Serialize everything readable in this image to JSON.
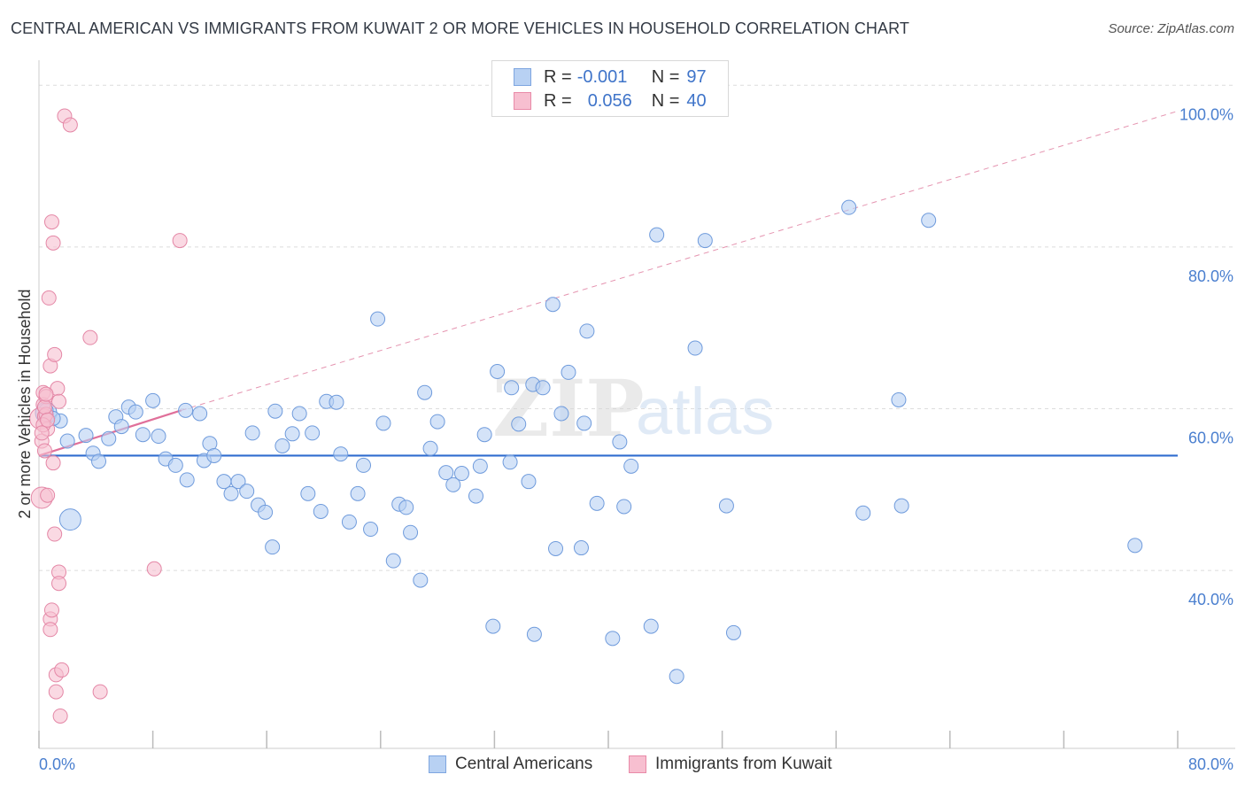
{
  "title": "CENTRAL AMERICAN VS IMMIGRANTS FROM KUWAIT 2 OR MORE VEHICLES IN HOUSEHOLD CORRELATION CHART",
  "source": "Source: ZipAtlas.com",
  "watermark": {
    "zip": "ZIP",
    "atlas": "atlas"
  },
  "legend": {
    "rows": [
      {
        "r_label": "R =",
        "r_value": "-0.001",
        "n_label": "N =",
        "n_value": "97",
        "fill": "#b8d1f3",
        "stroke": "#7ea6e0"
      },
      {
        "r_label": "R =",
        "r_value": "0.056",
        "n_label": "N =",
        "n_value": "40",
        "fill": "#f7bfd0",
        "stroke": "#e98aa8"
      }
    ]
  },
  "bottom_legend": {
    "items": [
      {
        "label": "Central Americans",
        "fill": "#b8d1f3",
        "stroke": "#7ea6e0"
      },
      {
        "label": "Immigrants from Kuwait",
        "fill": "#f7bfd0",
        "stroke": "#e98aa8"
      }
    ]
  },
  "chart_data": {
    "type": "scatter",
    "title": "CENTRAL AMERICAN VS IMMIGRANTS FROM KUWAIT 2 OR MORE VEHICLES IN HOUSEHOLD CORRELATION CHART",
    "xlabel": "",
    "ylabel": "2 or more Vehicles in Household",
    "xlim": [
      0,
      80
    ],
    "ylim": [
      18,
      102
    ],
    "x_tick_labels": [
      "0.0%",
      "80.0%"
    ],
    "y_tick_values": [
      40,
      60,
      80,
      100
    ],
    "y_tick_labels": [
      "40.0%",
      "60.0%",
      "80.0%",
      "100.0%"
    ],
    "grid": true,
    "colors": {
      "blue": "#5b8fd6",
      "pink": "#e67fa2",
      "tick_text": "#4a7fcf"
    },
    "series": [
      {
        "name": "Central Americans",
        "points": [
          [
            0.5,
            59.5
          ],
          [
            1.5,
            58.5
          ],
          [
            2.0,
            56.0
          ],
          [
            2.2,
            46.3
          ],
          [
            3.3,
            56.7
          ],
          [
            3.8,
            54.5
          ],
          [
            4.2,
            53.5
          ],
          [
            4.9,
            56.3
          ],
          [
            5.4,
            59.0
          ],
          [
            5.8,
            57.8
          ],
          [
            6.3,
            60.2
          ],
          [
            6.8,
            59.6
          ],
          [
            7.3,
            56.8
          ],
          [
            8.0,
            61.0
          ],
          [
            8.4,
            56.6
          ],
          [
            8.9,
            53.8
          ],
          [
            9.6,
            53.0
          ],
          [
            10.3,
            59.8
          ],
          [
            10.4,
            51.2
          ],
          [
            11.3,
            59.4
          ],
          [
            11.6,
            53.6
          ],
          [
            12.0,
            55.7
          ],
          [
            12.3,
            54.2
          ],
          [
            13.0,
            51.0
          ],
          [
            13.5,
            49.5
          ],
          [
            14.0,
            51.0
          ],
          [
            14.6,
            49.8
          ],
          [
            15.0,
            57.0
          ],
          [
            15.4,
            48.1
          ],
          [
            15.9,
            47.2
          ],
          [
            16.4,
            42.9
          ],
          [
            16.6,
            59.7
          ],
          [
            17.1,
            55.4
          ],
          [
            17.8,
            56.9
          ],
          [
            18.3,
            59.4
          ],
          [
            18.9,
            49.5
          ],
          [
            19.2,
            57.0
          ],
          [
            19.8,
            47.3
          ],
          [
            20.2,
            60.9
          ],
          [
            20.9,
            60.8
          ],
          [
            21.2,
            54.4
          ],
          [
            21.8,
            46.0
          ],
          [
            22.4,
            49.5
          ],
          [
            22.8,
            53.0
          ],
          [
            23.3,
            45.1
          ],
          [
            23.8,
            71.1
          ],
          [
            24.2,
            58.2
          ],
          [
            24.9,
            41.2
          ],
          [
            25.3,
            48.2
          ],
          [
            25.8,
            47.8
          ],
          [
            26.1,
            44.7
          ],
          [
            26.8,
            38.8
          ],
          [
            27.1,
            62.0
          ],
          [
            27.5,
            55.1
          ],
          [
            28.0,
            58.4
          ],
          [
            28.6,
            52.1
          ],
          [
            29.1,
            50.6
          ],
          [
            29.7,
            52.0
          ],
          [
            30.7,
            49.2
          ],
          [
            31.0,
            52.9
          ],
          [
            31.3,
            56.8
          ],
          [
            31.9,
            33.1
          ],
          [
            32.2,
            64.6
          ],
          [
            33.1,
            53.4
          ],
          [
            33.2,
            62.6
          ],
          [
            33.7,
            58.1
          ],
          [
            34.4,
            51.0
          ],
          [
            34.7,
            63.0
          ],
          [
            34.8,
            32.1
          ],
          [
            35.4,
            62.6
          ],
          [
            36.1,
            72.9
          ],
          [
            36.3,
            42.7
          ],
          [
            36.7,
            59.4
          ],
          [
            37.2,
            64.5
          ],
          [
            38.1,
            42.8
          ],
          [
            38.3,
            58.2
          ],
          [
            38.5,
            69.6
          ],
          [
            39.2,
            48.3
          ],
          [
            40.3,
            31.6
          ],
          [
            40.8,
            55.9
          ],
          [
            41.1,
            47.9
          ],
          [
            41.6,
            52.9
          ],
          [
            43.0,
            33.1
          ],
          [
            43.4,
            81.5
          ],
          [
            44.8,
            26.9
          ],
          [
            46.1,
            67.5
          ],
          [
            46.8,
            80.8
          ],
          [
            48.3,
            48.0
          ],
          [
            48.8,
            32.3
          ],
          [
            56.9,
            84.9
          ],
          [
            57.9,
            47.1
          ],
          [
            60.4,
            61.1
          ],
          [
            60.6,
            48.0
          ],
          [
            62.5,
            83.3
          ],
          [
            77.0,
            43.1
          ],
          [
            1.0,
            58.8
          ],
          [
            0.5,
            59.8
          ]
        ]
      },
      {
        "name": "Immigrants from Kuwait",
        "points": [
          [
            0.1,
            58.8
          ],
          [
            0.2,
            56.0
          ],
          [
            0.2,
            49.0
          ],
          [
            0.3,
            62.0
          ],
          [
            0.3,
            60.5
          ],
          [
            0.4,
            59.1
          ],
          [
            0.4,
            54.8
          ],
          [
            0.5,
            61.5
          ],
          [
            0.5,
            59.3
          ],
          [
            0.6,
            57.5
          ],
          [
            0.6,
            49.3
          ],
          [
            0.7,
            73.7
          ],
          [
            0.8,
            65.3
          ],
          [
            0.8,
            34.0
          ],
          [
            0.8,
            32.7
          ],
          [
            0.9,
            83.1
          ],
          [
            0.9,
            35.1
          ],
          [
            1.0,
            80.5
          ],
          [
            1.0,
            53.3
          ],
          [
            1.1,
            66.7
          ],
          [
            1.1,
            44.5
          ],
          [
            1.2,
            25.0
          ],
          [
            1.2,
            27.1
          ],
          [
            1.3,
            62.5
          ],
          [
            1.4,
            60.9
          ],
          [
            1.4,
            39.8
          ],
          [
            1.4,
            38.4
          ],
          [
            1.5,
            22.0
          ],
          [
            1.6,
            27.7
          ],
          [
            1.8,
            96.2
          ],
          [
            2.2,
            95.1
          ],
          [
            3.6,
            68.8
          ],
          [
            4.3,
            25.0
          ],
          [
            8.1,
            40.2
          ],
          [
            9.9,
            80.8
          ],
          [
            0.3,
            58.0
          ],
          [
            0.4,
            60.2
          ],
          [
            0.6,
            58.6
          ],
          [
            0.2,
            57.0
          ],
          [
            0.5,
            61.8
          ]
        ]
      }
    ],
    "trend_lines": [
      {
        "series": "Central Americans",
        "x": [
          0,
          80
        ],
        "y": [
          54.2,
          54.2
        ]
      },
      {
        "series": "Immigrants from Kuwait",
        "x": [
          0,
          10
        ],
        "y": [
          54.2,
          59.8
        ]
      },
      {
        "series": "Immigrants from Kuwait (extended)",
        "x": [
          10,
          80
        ],
        "y": [
          59.8,
          96.8
        ]
      }
    ]
  }
}
